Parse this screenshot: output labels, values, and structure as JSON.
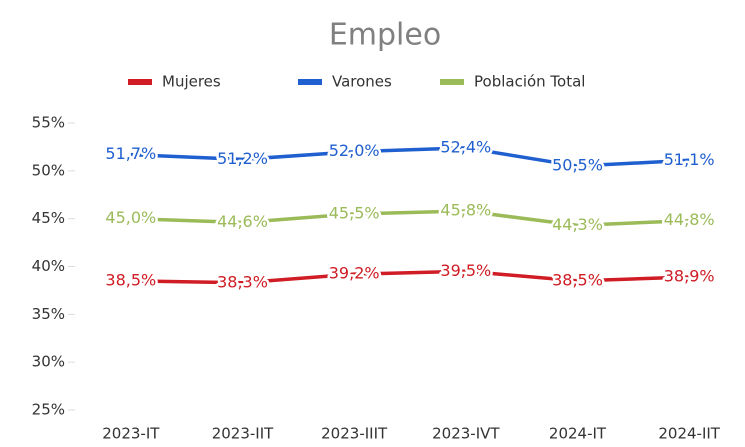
{
  "chart_data": {
    "type": "line",
    "title": "Empleo",
    "categories": [
      "2023-IT",
      "2023-IIT",
      "2023-IIIT",
      "2023-IVT",
      "2024-IT",
      "2024-IIT"
    ],
    "series": [
      {
        "name": "Mujeres",
        "color": "#d01c24",
        "values": [
          38.5,
          38.3,
          39.2,
          39.5,
          38.5,
          38.9
        ],
        "value_labels": [
          "38,5%",
          "38,3%",
          "39,2%",
          "39,5%",
          "38,5%",
          "38,9%"
        ]
      },
      {
        "name": "Varones",
        "color": "#1f5fcf",
        "values": [
          51.7,
          51.2,
          52.0,
          52.4,
          50.5,
          51.1
        ],
        "value_labels": [
          "51,7%",
          "51,2%",
          "52,0%",
          "52,4%",
          "50,5%",
          "51,1%"
        ]
      },
      {
        "name": "Población Total",
        "color": "#9bbb59",
        "values": [
          45.0,
          44.6,
          45.5,
          45.8,
          44.3,
          44.8
        ],
        "value_labels": [
          "45,0%",
          "44,6%",
          "45,5%",
          "45,8%",
          "44,3%",
          "44,8%"
        ]
      }
    ],
    "ylim": [
      25,
      55
    ],
    "yticks": [
      {
        "value": 25,
        "label": "25%"
      },
      {
        "value": 30,
        "label": "30%"
      },
      {
        "value": 35,
        "label": "35%"
      },
      {
        "value": 40,
        "label": "40%"
      },
      {
        "value": 45,
        "label": "45%"
      },
      {
        "value": 50,
        "label": "50%"
      },
      {
        "value": 55,
        "label": "55%"
      }
    ],
    "legend": "top"
  }
}
